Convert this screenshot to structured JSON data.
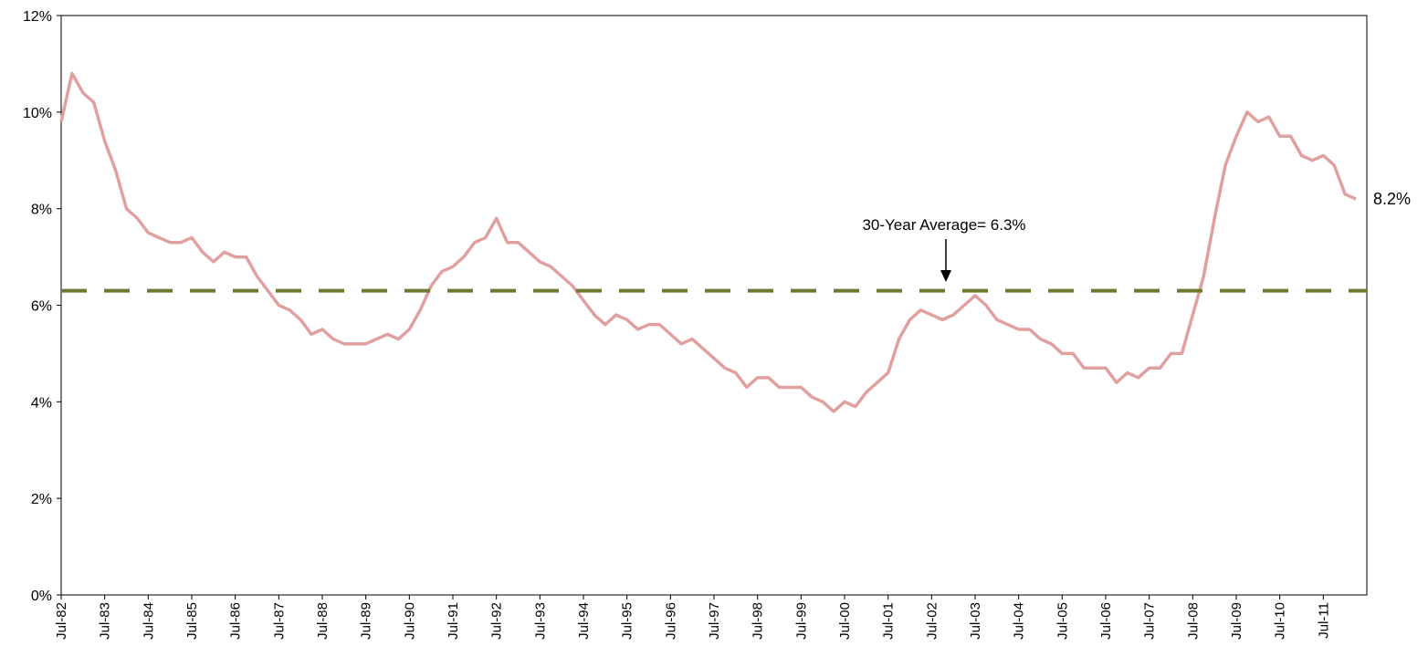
{
  "chart_data": {
    "type": "line",
    "categories": [
      "Jul-82",
      null,
      null,
      null,
      "Jul-83",
      null,
      null,
      null,
      "Jul-84",
      null,
      null,
      null,
      "Jul-85",
      null,
      null,
      null,
      "Jul-86",
      null,
      null,
      null,
      "Jul-87",
      null,
      null,
      null,
      "Jul-88",
      null,
      null,
      null,
      "Jul-89",
      null,
      null,
      null,
      "Jul-90",
      null,
      null,
      null,
      "Jul-91",
      null,
      null,
      null,
      "Jul-92",
      null,
      null,
      null,
      "Jul-93",
      null,
      null,
      null,
      "Jul-94",
      null,
      null,
      null,
      "Jul-95",
      null,
      null,
      null,
      "Jul-96",
      null,
      null,
      null,
      "Jul-97",
      null,
      null,
      null,
      "Jul-98",
      null,
      null,
      null,
      "Jul-99",
      null,
      null,
      null,
      "Jul-00",
      null,
      null,
      null,
      "Jul-01",
      null,
      null,
      null,
      "Jul-02",
      null,
      null,
      null,
      "Jul-03",
      null,
      null,
      null,
      "Jul-04",
      null,
      null,
      null,
      "Jul-05",
      null,
      null,
      null,
      "Jul-06",
      null,
      null,
      null,
      "Jul-07",
      null,
      null,
      null,
      "Jul-08",
      null,
      null,
      null,
      "Jul-09",
      null,
      null,
      null,
      "Jul-10",
      null,
      null,
      null,
      "Jul-11",
      null,
      null,
      null
    ],
    "values": [
      9.8,
      10.8,
      10.4,
      10.2,
      9.4,
      8.8,
      8.0,
      7.8,
      7.5,
      7.4,
      7.3,
      7.3,
      7.4,
      7.1,
      6.9,
      7.1,
      7.0,
      7.0,
      6.6,
      6.3,
      6.0,
      5.9,
      5.7,
      5.4,
      5.5,
      5.3,
      5.2,
      5.2,
      5.2,
      5.3,
      5.4,
      5.3,
      5.5,
      5.9,
      6.4,
      6.7,
      6.8,
      7.0,
      7.3,
      7.4,
      7.8,
      7.3,
      7.3,
      7.1,
      6.9,
      6.8,
      6.6,
      6.4,
      6.1,
      5.8,
      5.6,
      5.8,
      5.7,
      5.5,
      5.6,
      5.6,
      5.4,
      5.2,
      5.3,
      5.1,
      4.9,
      4.7,
      4.6,
      4.3,
      4.5,
      4.5,
      4.3,
      4.3,
      4.3,
      4.1,
      4.0,
      3.8,
      4.0,
      3.9,
      4.2,
      4.4,
      4.6,
      5.3,
      5.7,
      5.9,
      5.8,
      5.7,
      5.8,
      6.0,
      6.2,
      6.0,
      5.7,
      5.6,
      5.5,
      5.5,
      5.3,
      5.2,
      5.0,
      5.0,
      4.7,
      4.7,
      4.7,
      4.4,
      4.6,
      4.5,
      4.7,
      4.7,
      5.0,
      5.0,
      5.8,
      6.6,
      7.8,
      8.9,
      9.5,
      10.0,
      9.8,
      9.9,
      9.5,
      9.5,
      9.1,
      9.0,
      9.1,
      8.9,
      8.3,
      8.2
    ],
    "color": "#e0a0a0",
    "end_label": "8.2%",
    "average": 6.3,
    "average_color": "#6b7a2f",
    "annotation": "30-Year Average= 6.3%",
    "ylim": [
      0,
      12
    ],
    "yticks": [
      {
        "value": 0,
        "label": "0%"
      },
      {
        "value": 2,
        "label": "2%"
      },
      {
        "value": 4,
        "label": "4%"
      },
      {
        "value": 6,
        "label": "6%"
      },
      {
        "value": 8,
        "label": "8%"
      },
      {
        "value": 10,
        "label": "10%"
      },
      {
        "value": 12,
        "label": "12%"
      }
    ]
  }
}
